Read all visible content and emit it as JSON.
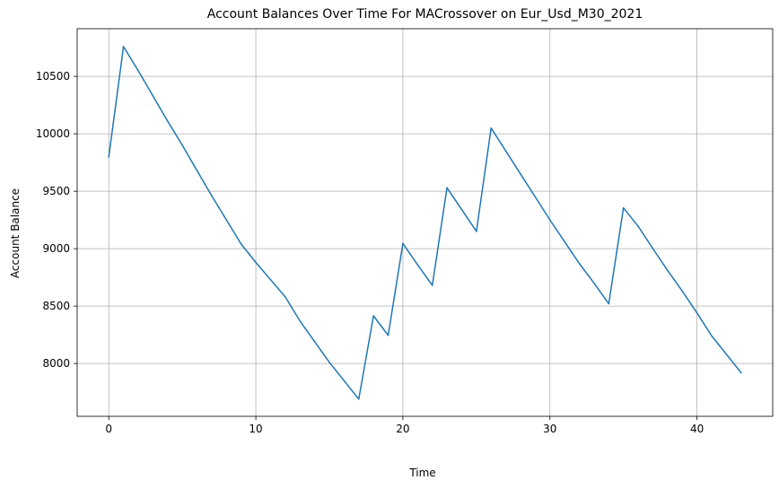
{
  "chart_data": {
    "type": "line",
    "title": "Account Balances Over Time For MACrossover on Eur_Usd_M30_2021",
    "xlabel": "Time",
    "ylabel": "Account Balance",
    "xlim": [
      -2.15,
      45.15
    ],
    "ylim": [
      7540,
      10915
    ],
    "xticks": [
      0,
      10,
      20,
      30,
      40
    ],
    "yticks": [
      8000,
      8500,
      9000,
      9500,
      10000,
      10500
    ],
    "grid": true,
    "series": [
      {
        "color": "#1f77b4",
        "x": [
          0,
          1,
          2,
          3,
          4,
          5,
          6,
          7,
          8,
          9,
          10,
          11,
          12,
          13,
          14,
          15,
          16,
          17,
          18,
          19,
          20,
          21,
          22,
          23,
          24,
          25,
          26,
          27,
          28,
          29,
          30,
          31,
          32,
          33,
          34,
          35,
          36,
          37,
          38,
          39,
          40,
          41,
          42,
          43
        ],
        "values": [
          9800,
          10760,
          10550,
          10330,
          10110,
          9900,
          9680,
          9460,
          9250,
          9040,
          8880,
          8730,
          8580,
          8370,
          8190,
          8010,
          7850,
          7690,
          8415,
          8245,
          9045,
          8860,
          8680,
          9530,
          9340,
          9150,
          10050,
          9850,
          9650,
          9450,
          9250,
          9060,
          8870,
          8700,
          8520,
          9355,
          9195,
          9000,
          8810,
          8630,
          8440,
          8240,
          8080,
          7920
        ]
      }
    ]
  }
}
